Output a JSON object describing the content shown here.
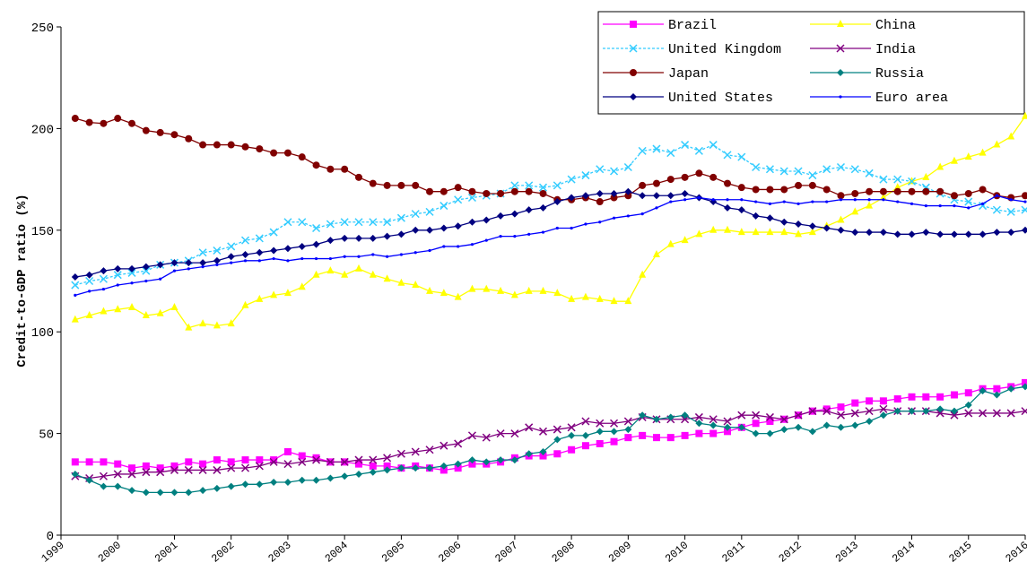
{
  "chart_data": {
    "type": "line",
    "y_label": "Credit-to-GDP ratio (%)",
    "x": [
      1999.25,
      1999.5,
      1999.75,
      2000,
      2000.25,
      2000.5,
      2000.75,
      2001,
      2001.25,
      2001.5,
      2001.75,
      2002,
      2002.25,
      2002.5,
      2002.75,
      2003,
      2003.25,
      2003.5,
      2003.75,
      2004,
      2004.25,
      2004.5,
      2004.75,
      2005,
      2005.25,
      2005.5,
      2005.75,
      2006,
      2006.25,
      2006.5,
      2006.75,
      2007,
      2007.25,
      2007.5,
      2007.75,
      2008,
      2008.25,
      2008.5,
      2008.75,
      2009,
      2009.25,
      2009.5,
      2009.75,
      2010,
      2010.25,
      2010.5,
      2010.75,
      2011,
      2011.25,
      2011.5,
      2011.75,
      2012,
      2012.25,
      2012.5,
      2012.75,
      2013,
      2013.25,
      2013.5,
      2013.75,
      2014,
      2014.25,
      2014.5,
      2014.75,
      2015,
      2015.25,
      2015.5,
      2015.75,
      2016
    ],
    "xlim": [
      1999,
      2016
    ],
    "xticks": [
      1999,
      2000,
      2001,
      2002,
      2003,
      2004,
      2005,
      2006,
      2007,
      2008,
      2009,
      2010,
      2011,
      2012,
      2013,
      2014,
      2015,
      2016
    ],
    "ylim": [
      0,
      250
    ],
    "yticks": [
      0,
      50,
      100,
      150,
      200,
      250
    ],
    "legend": "top-right",
    "series": [
      {
        "name": "Brazil",
        "color": "#ff00ff",
        "marker": "square",
        "values": [
          36,
          36,
          36,
          35,
          33,
          34,
          33,
          34,
          36,
          35,
          37,
          36,
          37,
          37,
          37,
          41,
          39,
          38,
          36,
          36,
          35,
          34,
          34,
          33,
          34,
          33,
          32,
          33,
          35,
          35,
          36,
          38,
          39,
          39,
          40,
          42,
          44,
          45,
          46,
          48,
          49,
          48,
          48,
          49,
          50,
          50,
          51,
          53,
          55,
          56,
          57,
          59,
          61,
          62,
          63,
          65,
          66,
          66,
          67,
          68,
          68,
          68,
          69,
          70,
          72,
          72,
          73,
          75
        ]
      },
      {
        "name": "China",
        "color": "#ffff00",
        "marker": "triangle",
        "values": [
          106,
          108,
          110,
          111,
          112,
          108,
          109,
          112,
          102,
          104,
          103,
          104,
          113,
          116,
          118,
          119,
          122,
          128,
          130,
          128,
          131,
          128,
          126,
          124,
          123,
          120,
          119,
          117,
          121,
          121,
          120,
          118,
          120,
          120,
          119,
          116,
          117,
          116,
          115,
          115,
          128,
          138,
          143,
          145,
          148,
          150,
          150,
          149,
          149,
          149,
          149,
          148,
          149,
          152,
          155,
          159,
          162,
          166,
          171,
          174,
          176,
          181,
          184,
          186,
          188,
          192,
          196,
          206
        ]
      },
      {
        "name": "United Kingdom",
        "color": "#33ccff",
        "marker": "x",
        "dash": true,
        "values": [
          123,
          125,
          126,
          128,
          129,
          130,
          133,
          134,
          135,
          139,
          140,
          142,
          145,
          146,
          149,
          154,
          154,
          151,
          153,
          154,
          154,
          154,
          154,
          156,
          158,
          159,
          162,
          165,
          166,
          167,
          168,
          172,
          172,
          171,
          172,
          175,
          177,
          180,
          179,
          181,
          189,
          190,
          188,
          192,
          189,
          192,
          187,
          186,
          181,
          180,
          179,
          179,
          177,
          180,
          181,
          180,
          178,
          175,
          175,
          174,
          171,
          168,
          165,
          164,
          162,
          160,
          159,
          160
        ]
      },
      {
        "name": "India",
        "color": "#800080",
        "marker": "x",
        "values": [
          29,
          28,
          29,
          30,
          30,
          31,
          31,
          32,
          32,
          32,
          32,
          33,
          33,
          34,
          36,
          35,
          36,
          37,
          36,
          36,
          37,
          37,
          38,
          40,
          41,
          42,
          44,
          45,
          49,
          48,
          50,
          50,
          53,
          51,
          52,
          53,
          56,
          55,
          55,
          56,
          58,
          57,
          57,
          57,
          58,
          57,
          56,
          59,
          59,
          58,
          57,
          59,
          61,
          61,
          59,
          60,
          61,
          62,
          61,
          61,
          61,
          60,
          59,
          60,
          60,
          60,
          60,
          61
        ]
      },
      {
        "name": "Japan",
        "color": "#800000",
        "marker": "circle",
        "values": [
          205,
          203,
          202.5,
          205,
          202.5,
          199,
          198,
          197,
          195,
          192,
          192,
          192,
          191,
          190,
          188,
          188,
          186,
          182,
          180,
          180,
          176,
          173,
          172,
          172,
          172,
          169,
          169,
          171,
          169,
          168,
          168,
          169,
          169,
          168,
          165,
          165,
          166,
          164,
          166,
          167,
          172,
          173,
          175,
          176,
          178,
          176,
          173,
          171,
          170,
          170,
          170,
          172,
          172,
          170,
          167,
          168,
          169,
          169,
          169,
          169,
          169,
          169,
          167,
          168,
          170,
          167,
          166,
          167
        ]
      },
      {
        "name": "Russia",
        "color": "#008080",
        "marker": "diamond",
        "values": [
          30,
          27,
          24,
          24,
          22,
          21,
          21,
          21,
          21,
          22,
          23,
          24,
          25,
          25,
          26,
          26,
          27,
          27,
          28,
          29,
          30,
          31,
          32,
          33,
          33,
          33,
          34,
          35,
          37,
          36,
          37,
          37,
          40,
          41,
          47,
          49,
          49,
          51,
          51,
          52,
          59,
          57,
          58,
          59,
          55,
          54,
          53,
          53,
          50,
          50,
          52,
          53,
          51,
          54,
          53,
          54,
          56,
          59,
          61,
          61,
          61,
          62,
          61,
          64,
          71,
          69,
          72,
          73
        ]
      },
      {
        "name": "United States",
        "color": "#000080",
        "marker": "diamond",
        "values": [
          127,
          128,
          130,
          131,
          131,
          132,
          133,
          134,
          134,
          134,
          135,
          137,
          138,
          139,
          140,
          141,
          142,
          143,
          145,
          146,
          146,
          146,
          147,
          148,
          150,
          150,
          151,
          152,
          154,
          155,
          157,
          158,
          160,
          161,
          164,
          166,
          167,
          168,
          168,
          169,
          167,
          167,
          167,
          168,
          166,
          164,
          161,
          160,
          157,
          156,
          154,
          153,
          152,
          151,
          150,
          149,
          149,
          149,
          148,
          148,
          149,
          148,
          148,
          148,
          148,
          149,
          149,
          150
        ]
      },
      {
        "name": "Euro area",
        "color": "#0000ff",
        "marker": "dot",
        "values": [
          118,
          120,
          121,
          123,
          124,
          125,
          126,
          130,
          131,
          132,
          133,
          134,
          135,
          135,
          136,
          135,
          136,
          136,
          136,
          137,
          137,
          138,
          137,
          138,
          139,
          140,
          142,
          142,
          143,
          145,
          147,
          147,
          148,
          149,
          151,
          151,
          153,
          154,
          156,
          157,
          158,
          161,
          164,
          165,
          166,
          165,
          165,
          165,
          164,
          163,
          164,
          163,
          164,
          164,
          165,
          165,
          165,
          165,
          164,
          163,
          162,
          162,
          162,
          161,
          163,
          167,
          165,
          164
        ]
      }
    ]
  }
}
